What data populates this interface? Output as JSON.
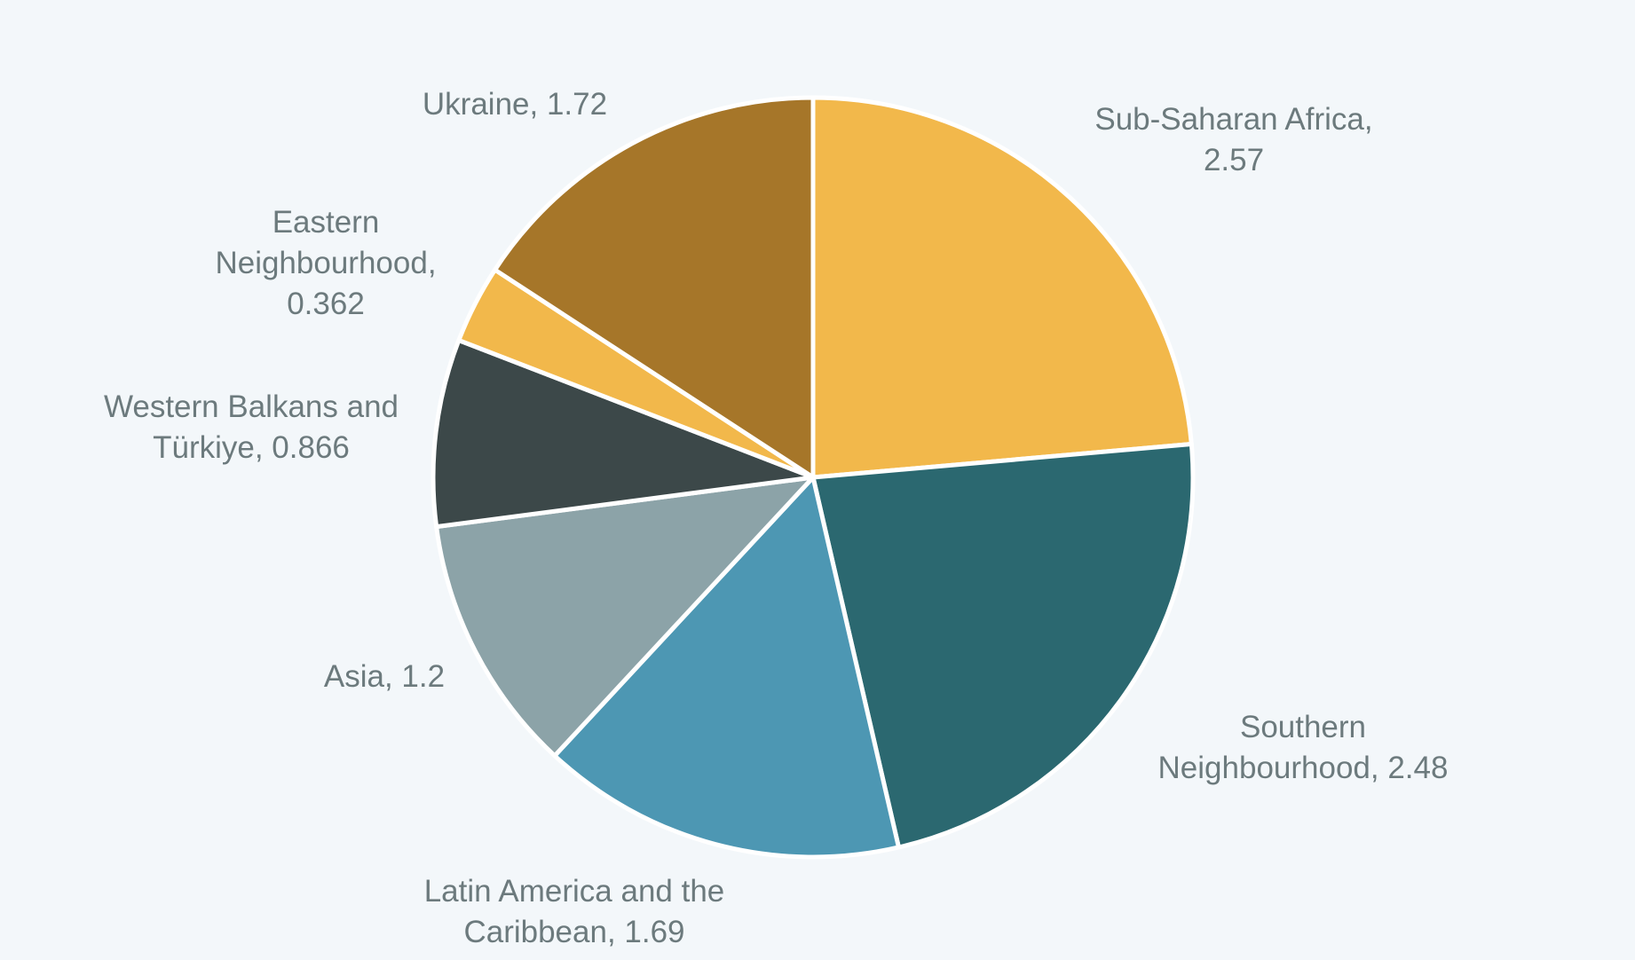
{
  "chart_data": {
    "type": "pie",
    "title": "",
    "start": "12 o'clock",
    "direction": "clockwise",
    "slice_border_color": "#ffffff",
    "label_color": "#6c7a7d",
    "background_color": "#f3f7fa",
    "slices": [
      {
        "category": "Sub-Saharan Africa",
        "value": 2.57,
        "color": "#f2b84b",
        "label_lines": [
          "Sub-Saharan Africa,",
          "2.57"
        ]
      },
      {
        "category": "Southern Neighbourhood",
        "value": 2.48,
        "color": "#2b6870",
        "label_lines": [
          "Southern",
          "Neighbourhood, 2.48"
        ]
      },
      {
        "category": "Latin America and the Caribbean",
        "value": 1.69,
        "color": "#4d97b3",
        "label_lines": [
          "Latin America and the",
          "Caribbean, 1.69"
        ]
      },
      {
        "category": "Asia",
        "value": 1.2,
        "color": "#8ca3a8",
        "label_lines": [
          "Asia, 1.2"
        ]
      },
      {
        "category": "Western Balkans and Türkiye",
        "value": 0.866,
        "color": "#3c4849",
        "label_lines": [
          "Western Balkans and",
          "Türkiye, 0.866"
        ]
      },
      {
        "category": "Eastern Neighbourhood",
        "value": 0.362,
        "color": "#f2b84b",
        "label_lines": [
          "Eastern",
          "Neighbourhood,",
          "0.362"
        ]
      },
      {
        "category": "Ukraine",
        "value": 1.72,
        "color": "#a67629",
        "label_lines": [
          "Ukraine, 1.72"
        ]
      }
    ]
  }
}
